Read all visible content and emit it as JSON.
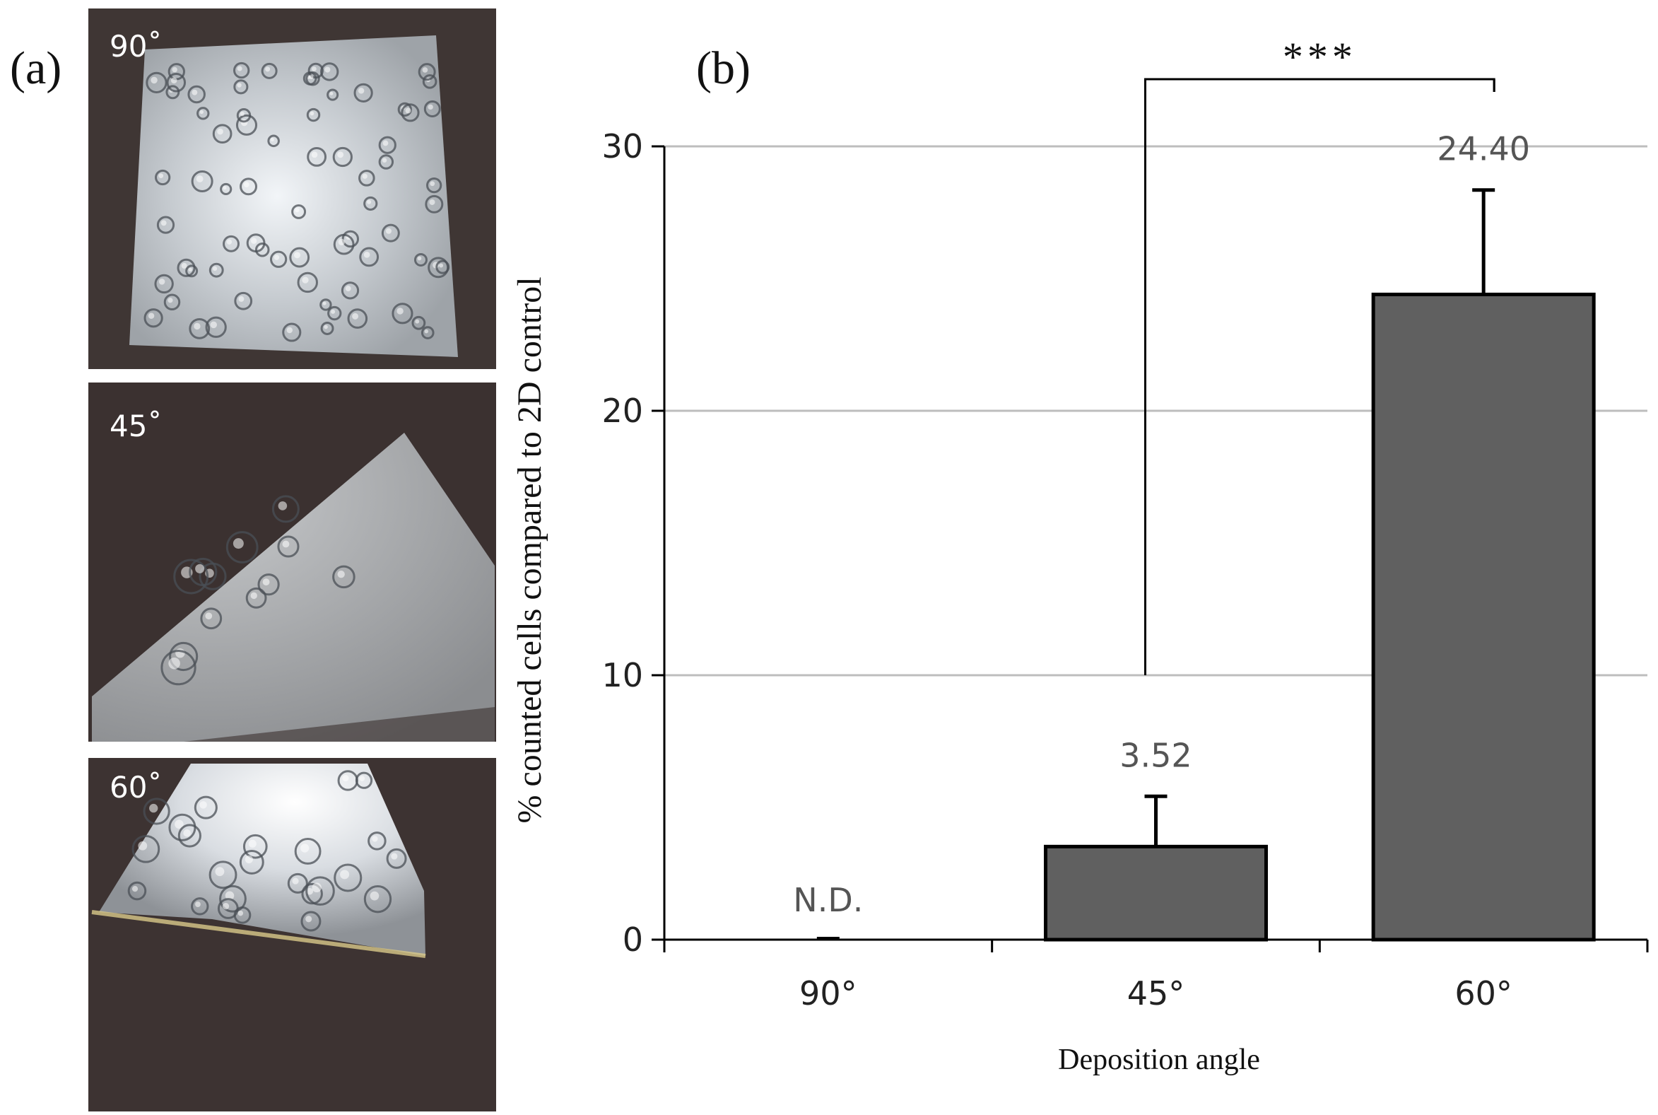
{
  "panel_a": {
    "label": "(a)",
    "images": [
      {
        "label": "90˚"
      },
      {
        "label": "45˚"
      },
      {
        "label": "60˚"
      }
    ]
  },
  "panel_b": {
    "label": "(b)"
  },
  "chart_data": {
    "type": "bar",
    "categories": [
      "90°",
      "45°",
      "60°"
    ],
    "values": [
      0,
      3.52,
      24.4
    ],
    "errors": [
      0,
      1.9,
      3.95
    ],
    "data_labels": [
      "N.D.",
      "3.52",
      "24.40"
    ],
    "xlabel": "Deposition angle",
    "ylabel": "% counted cells compared to 2D control",
    "ylim": [
      0,
      30
    ],
    "yticks": [
      0,
      10,
      20,
      30
    ],
    "grid": true,
    "significance": {
      "between": [
        "45°",
        "60°"
      ],
      "label": "***"
    },
    "colors": {
      "bar": "#606060",
      "bar_edge": "#000000",
      "grid": "#bdbdbd"
    }
  }
}
